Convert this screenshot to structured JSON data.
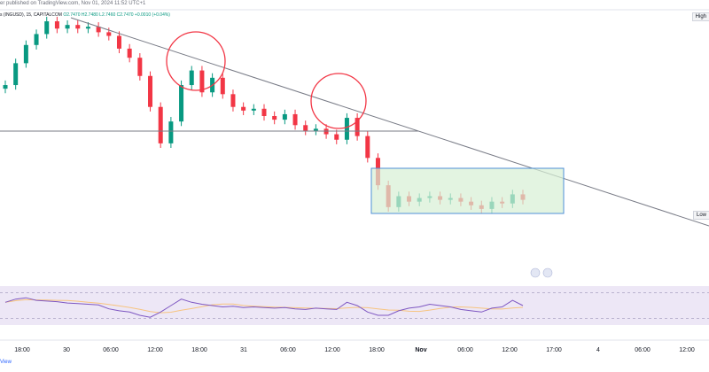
{
  "header": {
    "published_by": "er published on TradingView.com, Nov 01, 2024 11:52 UTC+1",
    "symbol_line": "s (INGUSD), 15, CAPITALCOM",
    "ohlc_values": "O2.7470 H2.7480 L2.7460 C2.7470 +0.0010 (+0.04%)"
  },
  "tags": {
    "high": "High",
    "low": "Low"
  },
  "footer": {
    "brand": "View"
  },
  "colors": {
    "up": "#089981",
    "down": "#f23645",
    "trendline": "#787b86",
    "circle": "#f23645",
    "box_fill": "#d7f0d4",
    "box_border": "#4f8fd8",
    "rsi_fill": "#ede7f6",
    "rsi_line": "#7e57c2",
    "rsi_ma": "#f7c480"
  },
  "chart_data": {
    "type": "candlestick",
    "timeframe": "15",
    "time_labels": [
      "18:00",
      "30",
      "06:00",
      "12:00",
      "18:00",
      "31",
      "06:00",
      "12:00",
      "18:00",
      "Nov",
      "06:00",
      "12:00",
      "17:00",
      "4",
      "06:00",
      "12:00"
    ],
    "rsi_reference_levels": [
      30,
      70
    ],
    "annotations": [
      {
        "type": "descending trendline"
      },
      {
        "type": "circle",
        "count": 2
      },
      {
        "type": "range box"
      },
      {
        "type": "horizontal line"
      },
      {
        "type": "event flags",
        "count": 2
      }
    ],
    "series": [
      {
        "name": "price",
        "values": [
          2.81,
          2.822,
          2.832,
          2.838,
          2.845,
          2.841,
          2.843,
          2.841,
          2.842,
          2.839,
          2.837,
          2.83,
          2.825,
          2.815,
          2.798,
          2.778,
          2.79,
          2.81,
          2.818,
          2.806,
          2.814,
          2.805,
          2.798,
          2.796,
          2.797,
          2.793,
          2.791,
          2.794,
          2.788,
          2.785,
          2.786,
          2.783,
          2.78,
          2.792,
          2.782,
          2.77,
          2.755,
          2.743,
          2.749,
          2.746,
          2.748,
          2.749,
          2.747,
          2.748,
          2.746,
          2.744,
          2.742,
          2.746,
          2.745,
          2.75,
          2.747
        ]
      },
      {
        "name": "RSI",
        "values": [
          55,
          60,
          62,
          58,
          57,
          56,
          54,
          53,
          52,
          51,
          45,
          42,
          40,
          35,
          32,
          40,
          50,
          60,
          55,
          52,
          50,
          48,
          49,
          47,
          48,
          47,
          46,
          47,
          45,
          44,
          46,
          45,
          44,
          55,
          50,
          40,
          35,
          35,
          42,
          46,
          48,
          52,
          50,
          48,
          44,
          42,
          40,
          46,
          48,
          58,
          50
        ]
      }
    ]
  }
}
